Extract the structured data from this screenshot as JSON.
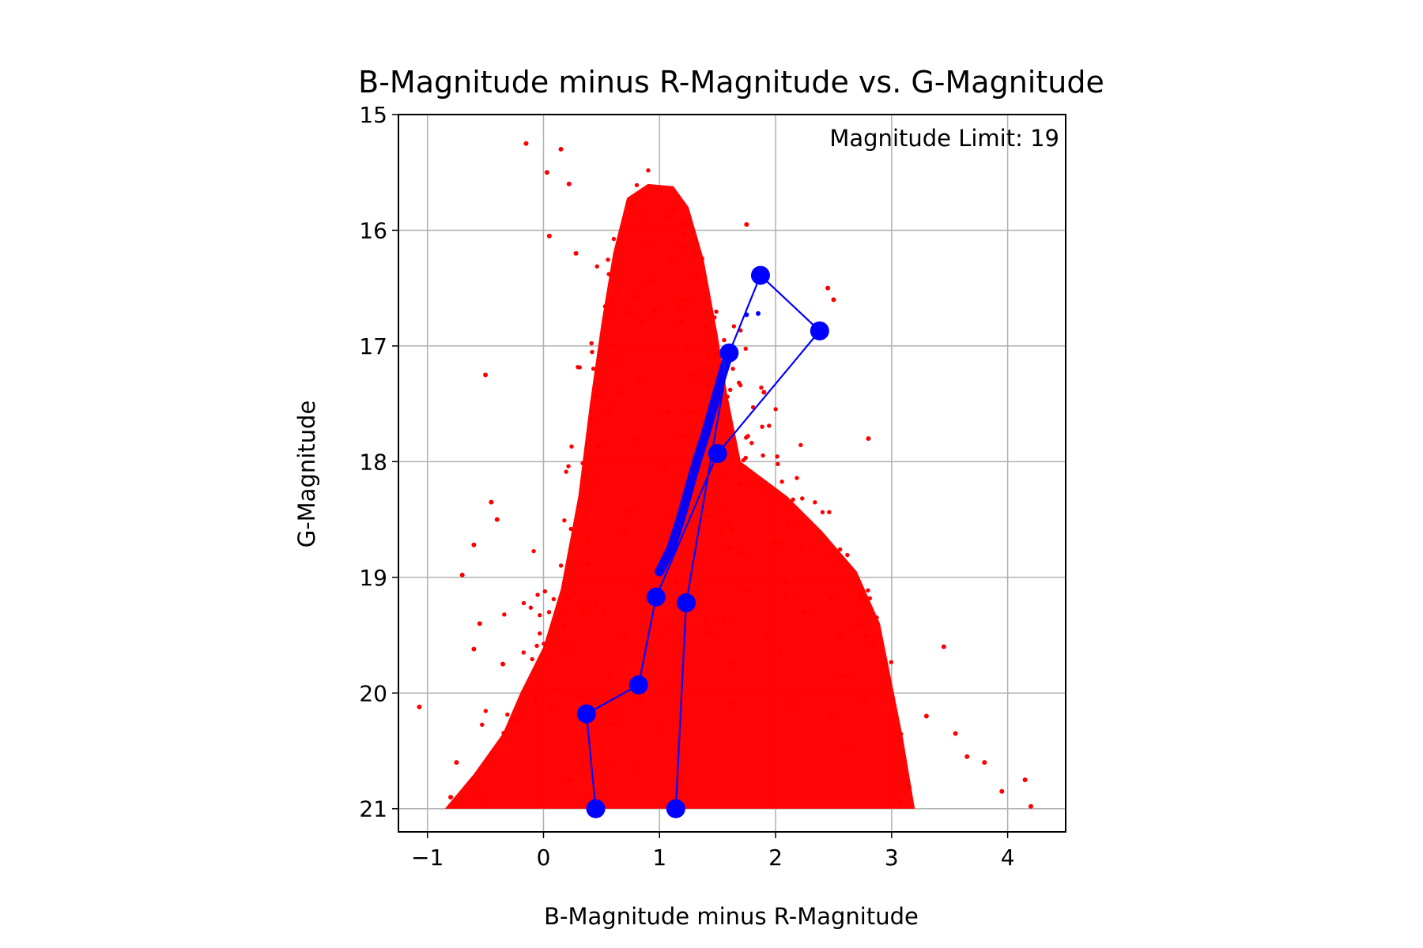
{
  "chart_data": {
    "type": "scatter",
    "title": "B-Magnitude minus R-Magnitude vs. G-Magnitude",
    "xlabel": "B-Magnitude minus R-Magnitude",
    "ylabel": "G-Magnitude",
    "annotation": "Magnitude Limit: 19",
    "xlim": [
      -1.25,
      4.5
    ],
    "ylim": [
      21.2,
      15.0
    ],
    "y_inverted": true,
    "grid": true,
    "x_ticks": [
      -1,
      0,
      1,
      2,
      3,
      4
    ],
    "x_tick_labels": [
      "−1",
      "0",
      "1",
      "2",
      "3",
      "4"
    ],
    "y_ticks": [
      15,
      16,
      17,
      18,
      19,
      20,
      21
    ],
    "y_tick_labels": [
      "15",
      "16",
      "17",
      "18",
      "19",
      "20",
      "21"
    ],
    "colors": {
      "stars": "#ff0000",
      "track": "#0000ff",
      "grid": "#b0b0b0",
      "axes": "#000000"
    },
    "series": [
      {
        "type": "scatter",
        "description_color": "red",
        "density_envelope": [
          [
            -0.85,
            21.0
          ],
          [
            -0.6,
            20.7
          ],
          [
            -0.35,
            20.35
          ],
          [
            -0.2,
            20.0
          ],
          [
            0.0,
            19.6
          ],
          [
            0.15,
            19.1
          ],
          [
            0.3,
            18.3
          ],
          [
            0.4,
            17.5
          ],
          [
            0.5,
            16.8
          ],
          [
            0.6,
            16.2
          ],
          [
            0.72,
            15.72
          ],
          [
            0.9,
            15.6
          ],
          [
            1.12,
            15.62
          ],
          [
            1.25,
            15.8
          ],
          [
            1.38,
            16.25
          ],
          [
            1.5,
            16.9
          ],
          [
            1.58,
            17.4
          ],
          [
            1.7,
            18.0
          ],
          [
            2.1,
            18.3
          ],
          [
            2.4,
            18.6
          ],
          [
            2.7,
            18.95
          ],
          [
            2.9,
            19.4
          ],
          [
            3.0,
            19.9
          ],
          [
            3.1,
            20.4
          ],
          [
            3.2,
            21.0
          ]
        ],
        "outliers": [
          [
            -0.15,
            15.25
          ],
          [
            0.15,
            15.3
          ],
          [
            0.03,
            15.5
          ],
          [
            0.22,
            15.6
          ],
          [
            -0.5,
            17.25
          ],
          [
            -0.45,
            18.35
          ],
          [
            -0.4,
            18.5
          ],
          [
            -0.6,
            18.72
          ],
          [
            -0.7,
            18.98
          ],
          [
            -0.55,
            19.4
          ],
          [
            -0.6,
            19.62
          ],
          [
            -1.07,
            20.12
          ],
          [
            -0.35,
            19.75
          ],
          [
            3.45,
            19.6
          ],
          [
            3.55,
            20.35
          ],
          [
            3.8,
            20.6
          ],
          [
            3.95,
            20.85
          ],
          [
            4.2,
            20.98
          ],
          [
            4.15,
            20.75
          ],
          [
            3.65,
            20.55
          ],
          [
            2.45,
            16.5
          ],
          [
            2.5,
            16.6
          ],
          [
            1.75,
            15.95
          ],
          [
            1.9,
            17.4
          ],
          [
            2.8,
            17.8
          ],
          [
            0.28,
            16.2
          ],
          [
            0.05,
            16.05
          ],
          [
            -0.8,
            20.9
          ],
          [
            -0.75,
            20.6
          ],
          [
            3.3,
            20.2
          ]
        ]
      },
      {
        "type": "line",
        "description_color": "blue",
        "points": [
          [
            0.45,
            21.0
          ],
          [
            0.37,
            20.18
          ],
          [
            0.82,
            19.93
          ],
          [
            0.97,
            19.17
          ],
          [
            1.5,
            17.93
          ],
          [
            2.38,
            16.87
          ],
          [
            1.87,
            16.39
          ],
          [
            1.6,
            17.06
          ],
          [
            1.23,
            19.22
          ],
          [
            1.14,
            21.0
          ]
        ],
        "dense_segment": [
          [
            1.0,
            18.95
          ],
          [
            1.1,
            18.75
          ],
          [
            1.18,
            18.5
          ],
          [
            1.25,
            18.25
          ],
          [
            1.32,
            18.0
          ],
          [
            1.4,
            17.75
          ],
          [
            1.47,
            17.5
          ],
          [
            1.54,
            17.25
          ],
          [
            1.6,
            17.06
          ]
        ],
        "small_markers": [
          [
            1.75,
            16.73
          ],
          [
            1.85,
            16.72
          ]
        ]
      }
    ]
  }
}
